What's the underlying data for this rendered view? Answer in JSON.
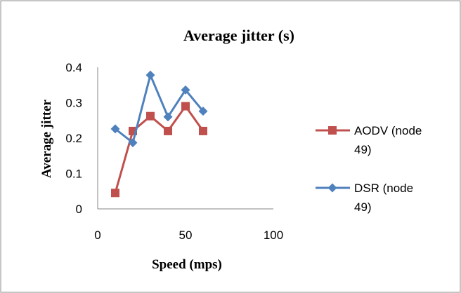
{
  "chart_data": {
    "type": "line",
    "title": "Average jitter (s)",
    "xlabel": "Speed (mps)",
    "ylabel": "Average jitter",
    "xlim": [
      0,
      100
    ],
    "ylim": [
      0,
      0.4
    ],
    "xticks": [
      "0",
      "50",
      "100"
    ],
    "yticks": [
      "0",
      "0.1",
      "0.2",
      "0.3",
      "0.4"
    ],
    "xtick_values": [
      0,
      50,
      100
    ],
    "ytick_values": [
      0,
      0.1,
      0.2,
      0.3,
      0.4
    ],
    "grid": false,
    "legend_position": "right",
    "series": [
      {
        "name": "AODV (node 49)",
        "name_lines": [
          "AODV (node",
          "49)"
        ],
        "color": "#C0504D",
        "marker": "square",
        "x": [
          10,
          20,
          30,
          40,
          50,
          60
        ],
        "y": [
          0.045,
          0.22,
          0.262,
          0.22,
          0.29,
          0.22
        ]
      },
      {
        "name": "DSR (node 49)",
        "name_lines": [
          "DSR (node",
          "49)"
        ],
        "color": "#4F81BD",
        "marker": "diamond",
        "x": [
          10,
          20,
          30,
          40,
          50,
          60
        ],
        "y": [
          0.226,
          0.187,
          0.378,
          0.26,
          0.336,
          0.276
        ]
      }
    ]
  }
}
